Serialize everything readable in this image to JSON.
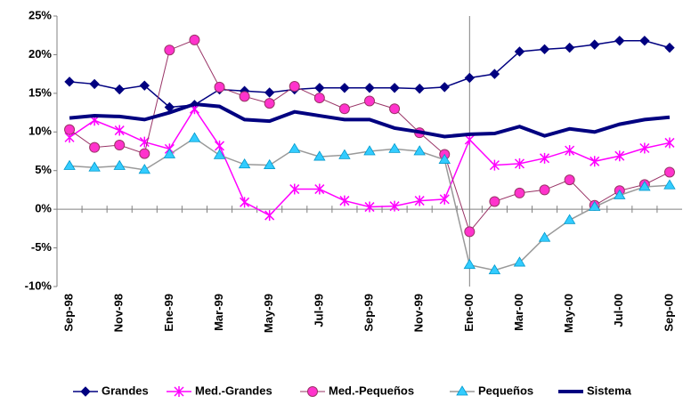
{
  "chart_data": {
    "type": "line",
    "categories": [
      "Sep-98",
      null,
      "Nov-98",
      null,
      "Ene-99",
      null,
      "Mar-99",
      null,
      "May-99",
      null,
      "Jul-99",
      null,
      "Sep-99",
      null,
      "Nov-99",
      null,
      "Ene-00",
      null,
      "Mar-00",
      null,
      "May-00",
      null,
      "Jul-00",
      null,
      "Sep-00"
    ],
    "series": [
      {
        "name": "Grandes",
        "color": "#000080",
        "marker": "diamond",
        "marker_fill": "#000080",
        "line_width": 1.5,
        "values": [
          16.5,
          16.2,
          15.5,
          16.0,
          13.2,
          13.5,
          15.5,
          15.3,
          15.1,
          15.5,
          15.7,
          15.7,
          15.7,
          15.7,
          15.6,
          15.8,
          17.0,
          17.5,
          20.4,
          20.7,
          20.9,
          21.3,
          21.8,
          21.8,
          20.9
        ]
      },
      {
        "name": "Med.-Grandes",
        "color": "#ff00ff",
        "marker": "star",
        "marker_fill": "#ff00ff",
        "line_width": 1.5,
        "values": [
          9.3,
          11.5,
          10.2,
          8.7,
          7.8,
          13.0,
          8.2,
          0.9,
          -0.8,
          2.6,
          2.6,
          1.1,
          0.3,
          0.4,
          1.1,
          1.3,
          9.0,
          5.7,
          5.9,
          6.6,
          7.6,
          6.2,
          6.9,
          7.9,
          8.6
        ]
      },
      {
        "name": "Med.-Pequeños",
        "color": "#993366",
        "marker": "circle",
        "marker_fill": "#ff33cc",
        "line_width": 1,
        "values": [
          10.3,
          8.0,
          8.3,
          7.2,
          20.6,
          21.9,
          15.8,
          14.6,
          13.7,
          15.9,
          14.4,
          13.0,
          14.0,
          13.0,
          9.9,
          7.1,
          -2.9,
          1.0,
          2.1,
          2.5,
          3.8,
          0.5,
          2.4,
          3.2,
          4.8
        ]
      },
      {
        "name": "Pequeños",
        "color": "#999999",
        "marker": "triangle",
        "marker_fill": "#33ccff",
        "line_width": 1.5,
        "values": [
          5.6,
          5.4,
          5.6,
          5.1,
          7.1,
          9.2,
          7.0,
          5.8,
          5.7,
          7.8,
          6.8,
          7.0,
          7.5,
          7.8,
          7.5,
          6.4,
          -7.2,
          -7.9,
          -6.9,
          -3.7,
          -1.4,
          0.3,
          1.8,
          2.9,
          3.1
        ]
      },
      {
        "name": "Sistema",
        "color": "#000080",
        "marker": "none",
        "marker_fill": "#000080",
        "line_width": 4,
        "values": [
          11.8,
          12.1,
          12.0,
          11.6,
          12.5,
          13.6,
          13.3,
          11.6,
          11.4,
          12.6,
          12.1,
          11.6,
          11.6,
          10.5,
          10.0,
          9.4,
          9.7,
          9.8,
          10.7,
          9.5,
          10.4,
          10.0,
          11.0,
          11.6,
          11.9
        ]
      }
    ],
    "ylim": [
      -10,
      25
    ],
    "yticks": [
      {
        "value": -10,
        "label": "-10%"
      },
      {
        "value": -5,
        "label": "-5%"
      },
      {
        "value": 0,
        "label": "0%"
      },
      {
        "value": 5,
        "label": "5%"
      },
      {
        "value": 10,
        "label": "10%"
      },
      {
        "value": 15,
        "label": "15%"
      },
      {
        "value": 20,
        "label": "20%"
      },
      {
        "value": 25,
        "label": "25%"
      }
    ],
    "vertical_line_at": "Ene-00",
    "grid": false,
    "legend": "bottom"
  }
}
